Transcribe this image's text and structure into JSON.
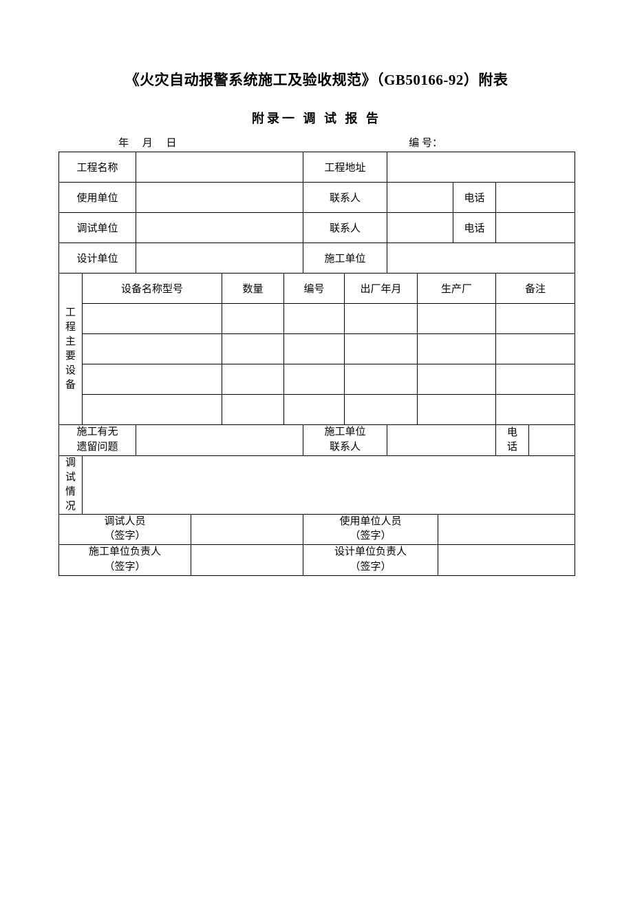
{
  "title": "《火灾自动报警系统施工及验收规范》（GB50166-92）附表",
  "subtitle": "附录一  调 试 报 告",
  "meta": {
    "date_label": "年  月  日",
    "serial_label": "编  号："
  },
  "labels": {
    "project_name": "工程名称",
    "project_address": "工程地址",
    "user_unit": "使用单位",
    "contact_person": "联系人",
    "phone": "电话",
    "debug_unit": "调试单位",
    "design_unit": "设计单位",
    "construction_unit": "施工单位",
    "equipment_section": "工程主要设备",
    "equipment_name_model": "设备名称型号",
    "quantity": "数量",
    "serial_no": "编号",
    "factory_date": "出厂年月",
    "manufacturer": "生产厂",
    "remarks": "备注",
    "construction_issue": "施工有无\n遗留问题",
    "construction_contact": "施工单位\n联系人",
    "phone_v": "电话",
    "debug_status": "调试情况",
    "debug_person_sign": "调试人员\n（签字）",
    "user_unit_person_sign": "使用单位人员\n（签字）",
    "construction_leader_sign": "施工单位负责人\n（签字）",
    "design_leader_sign": "设计单位负责人\n（签字）"
  },
  "style": {
    "border_color": "#000000",
    "background_color": "#ffffff",
    "font_family": "SimSun",
    "title_fontsize": 21,
    "subtitle_fontsize": 18,
    "body_fontsize": 15
  }
}
